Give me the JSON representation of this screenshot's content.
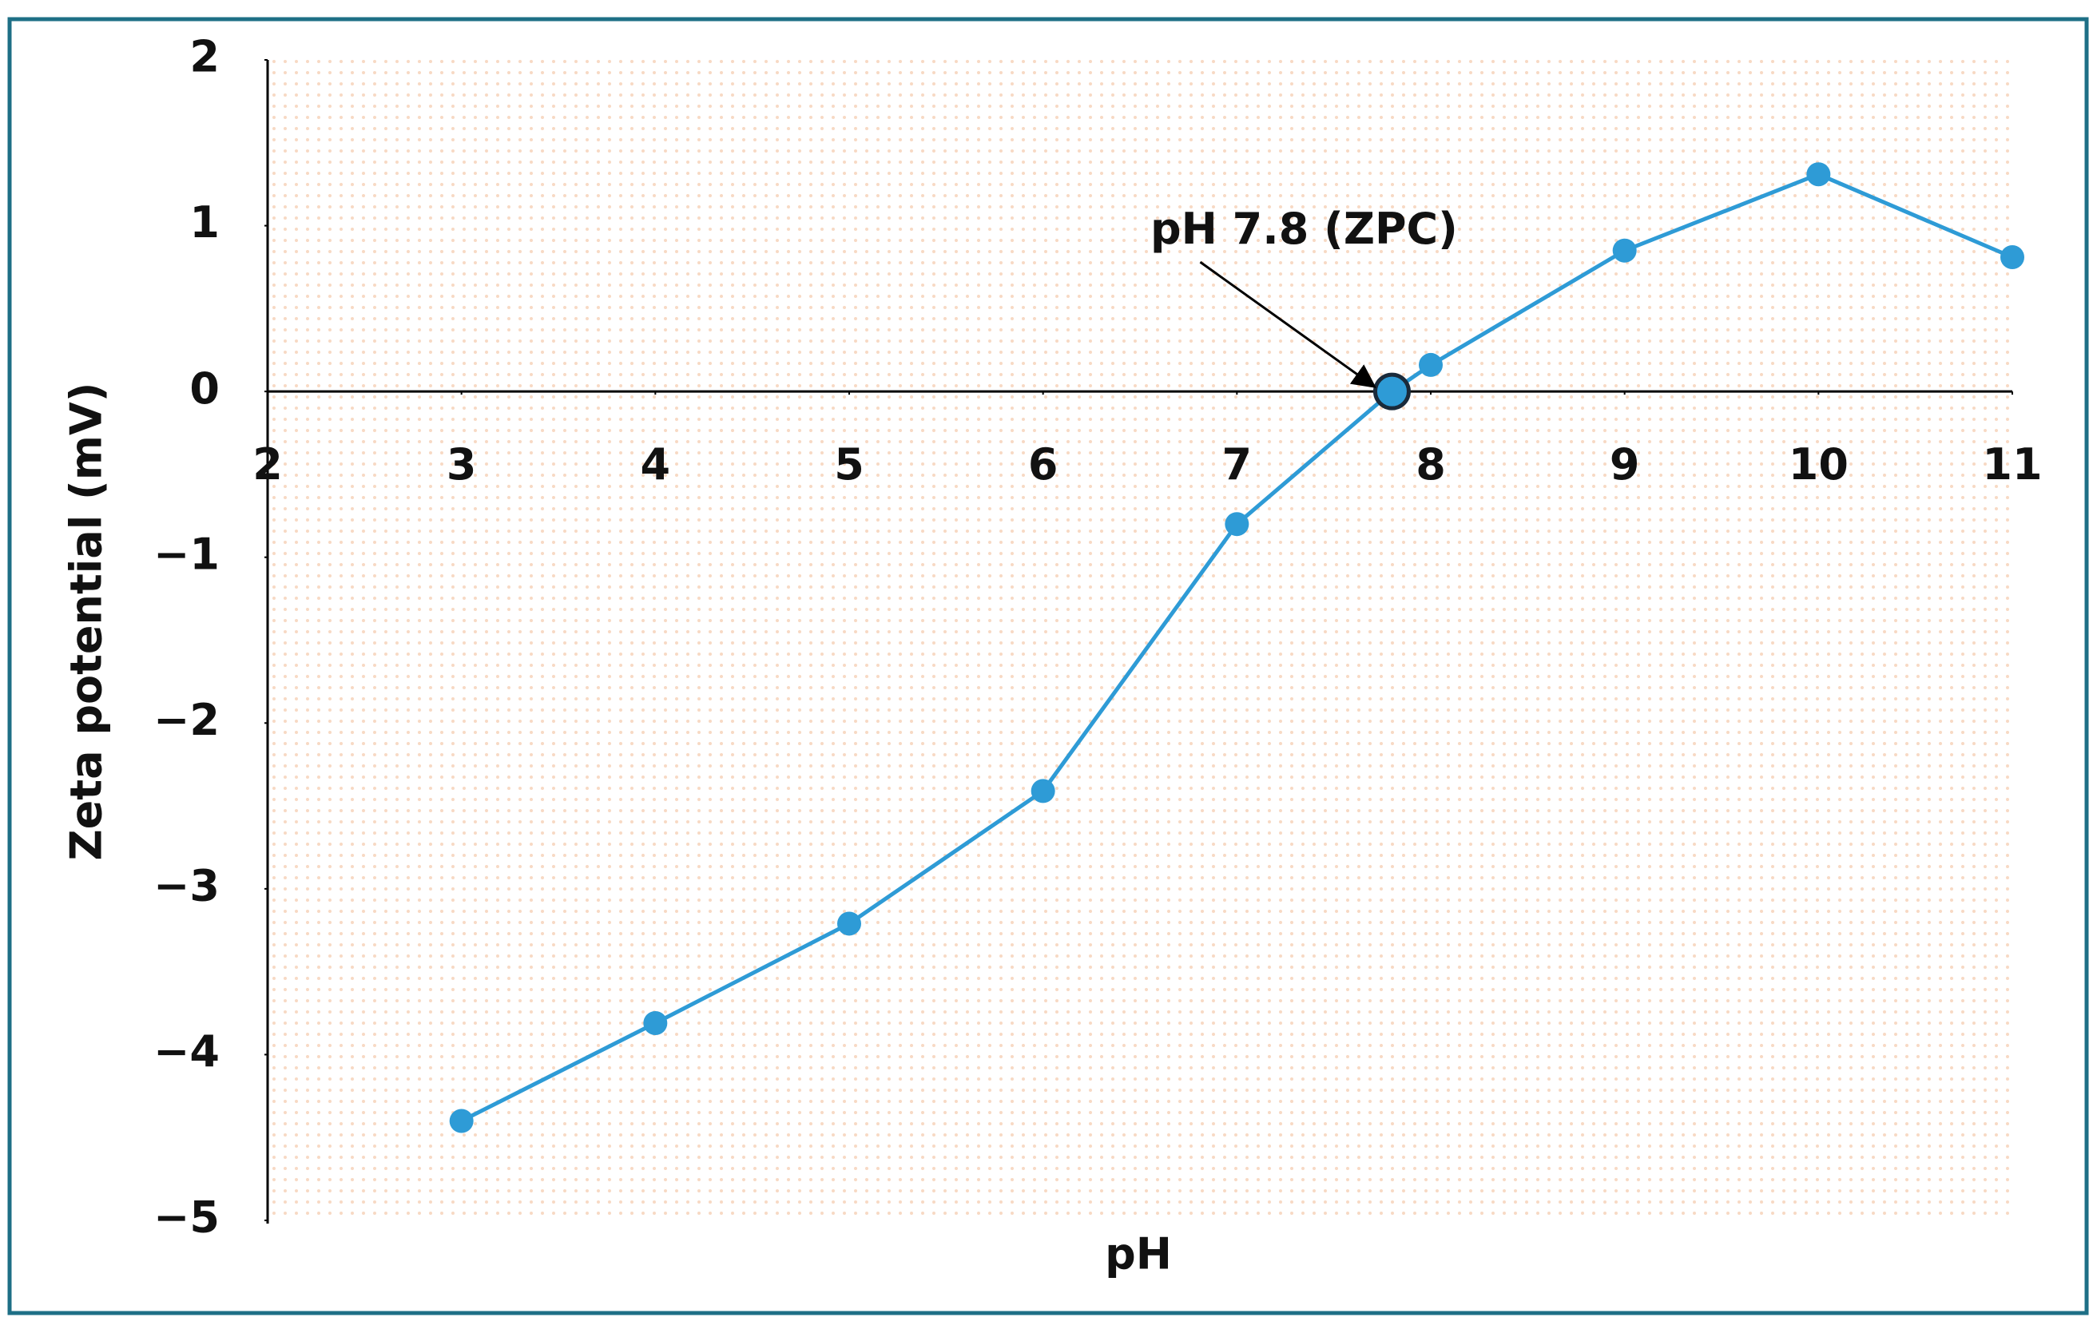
{
  "chart_data": {
    "type": "line",
    "x_label": "pH",
    "y_label": "Zeta potential (mV)",
    "x": [
      3,
      4,
      5,
      6,
      7,
      7.8,
      8,
      9,
      10,
      11
    ],
    "series": [
      {
        "color": "#2e9bd6",
        "values": [
          -4.4,
          -3.81,
          -3.21,
          -2.41,
          -0.8,
          0,
          0.16,
          0.85,
          1.31,
          0.81
        ]
      }
    ],
    "xlim": [
      2,
      11
    ],
    "xticks": [
      2,
      3,
      4,
      5,
      6,
      7,
      8,
      9,
      10,
      11
    ],
    "ylim": [
      -5,
      2
    ],
    "yticks": [
      {
        "value": -5,
        "label": "−5"
      },
      {
        "value": -4,
        "label": "−4"
      },
      {
        "value": -3,
        "label": "−3"
      },
      {
        "value": -2,
        "label": "−2"
      },
      {
        "value": -1,
        "label": "−1"
      },
      0,
      1,
      2
    ],
    "annotation": {
      "text": "pH 7.8 (ZPC)",
      "x": 7.8,
      "y": 0
    }
  }
}
